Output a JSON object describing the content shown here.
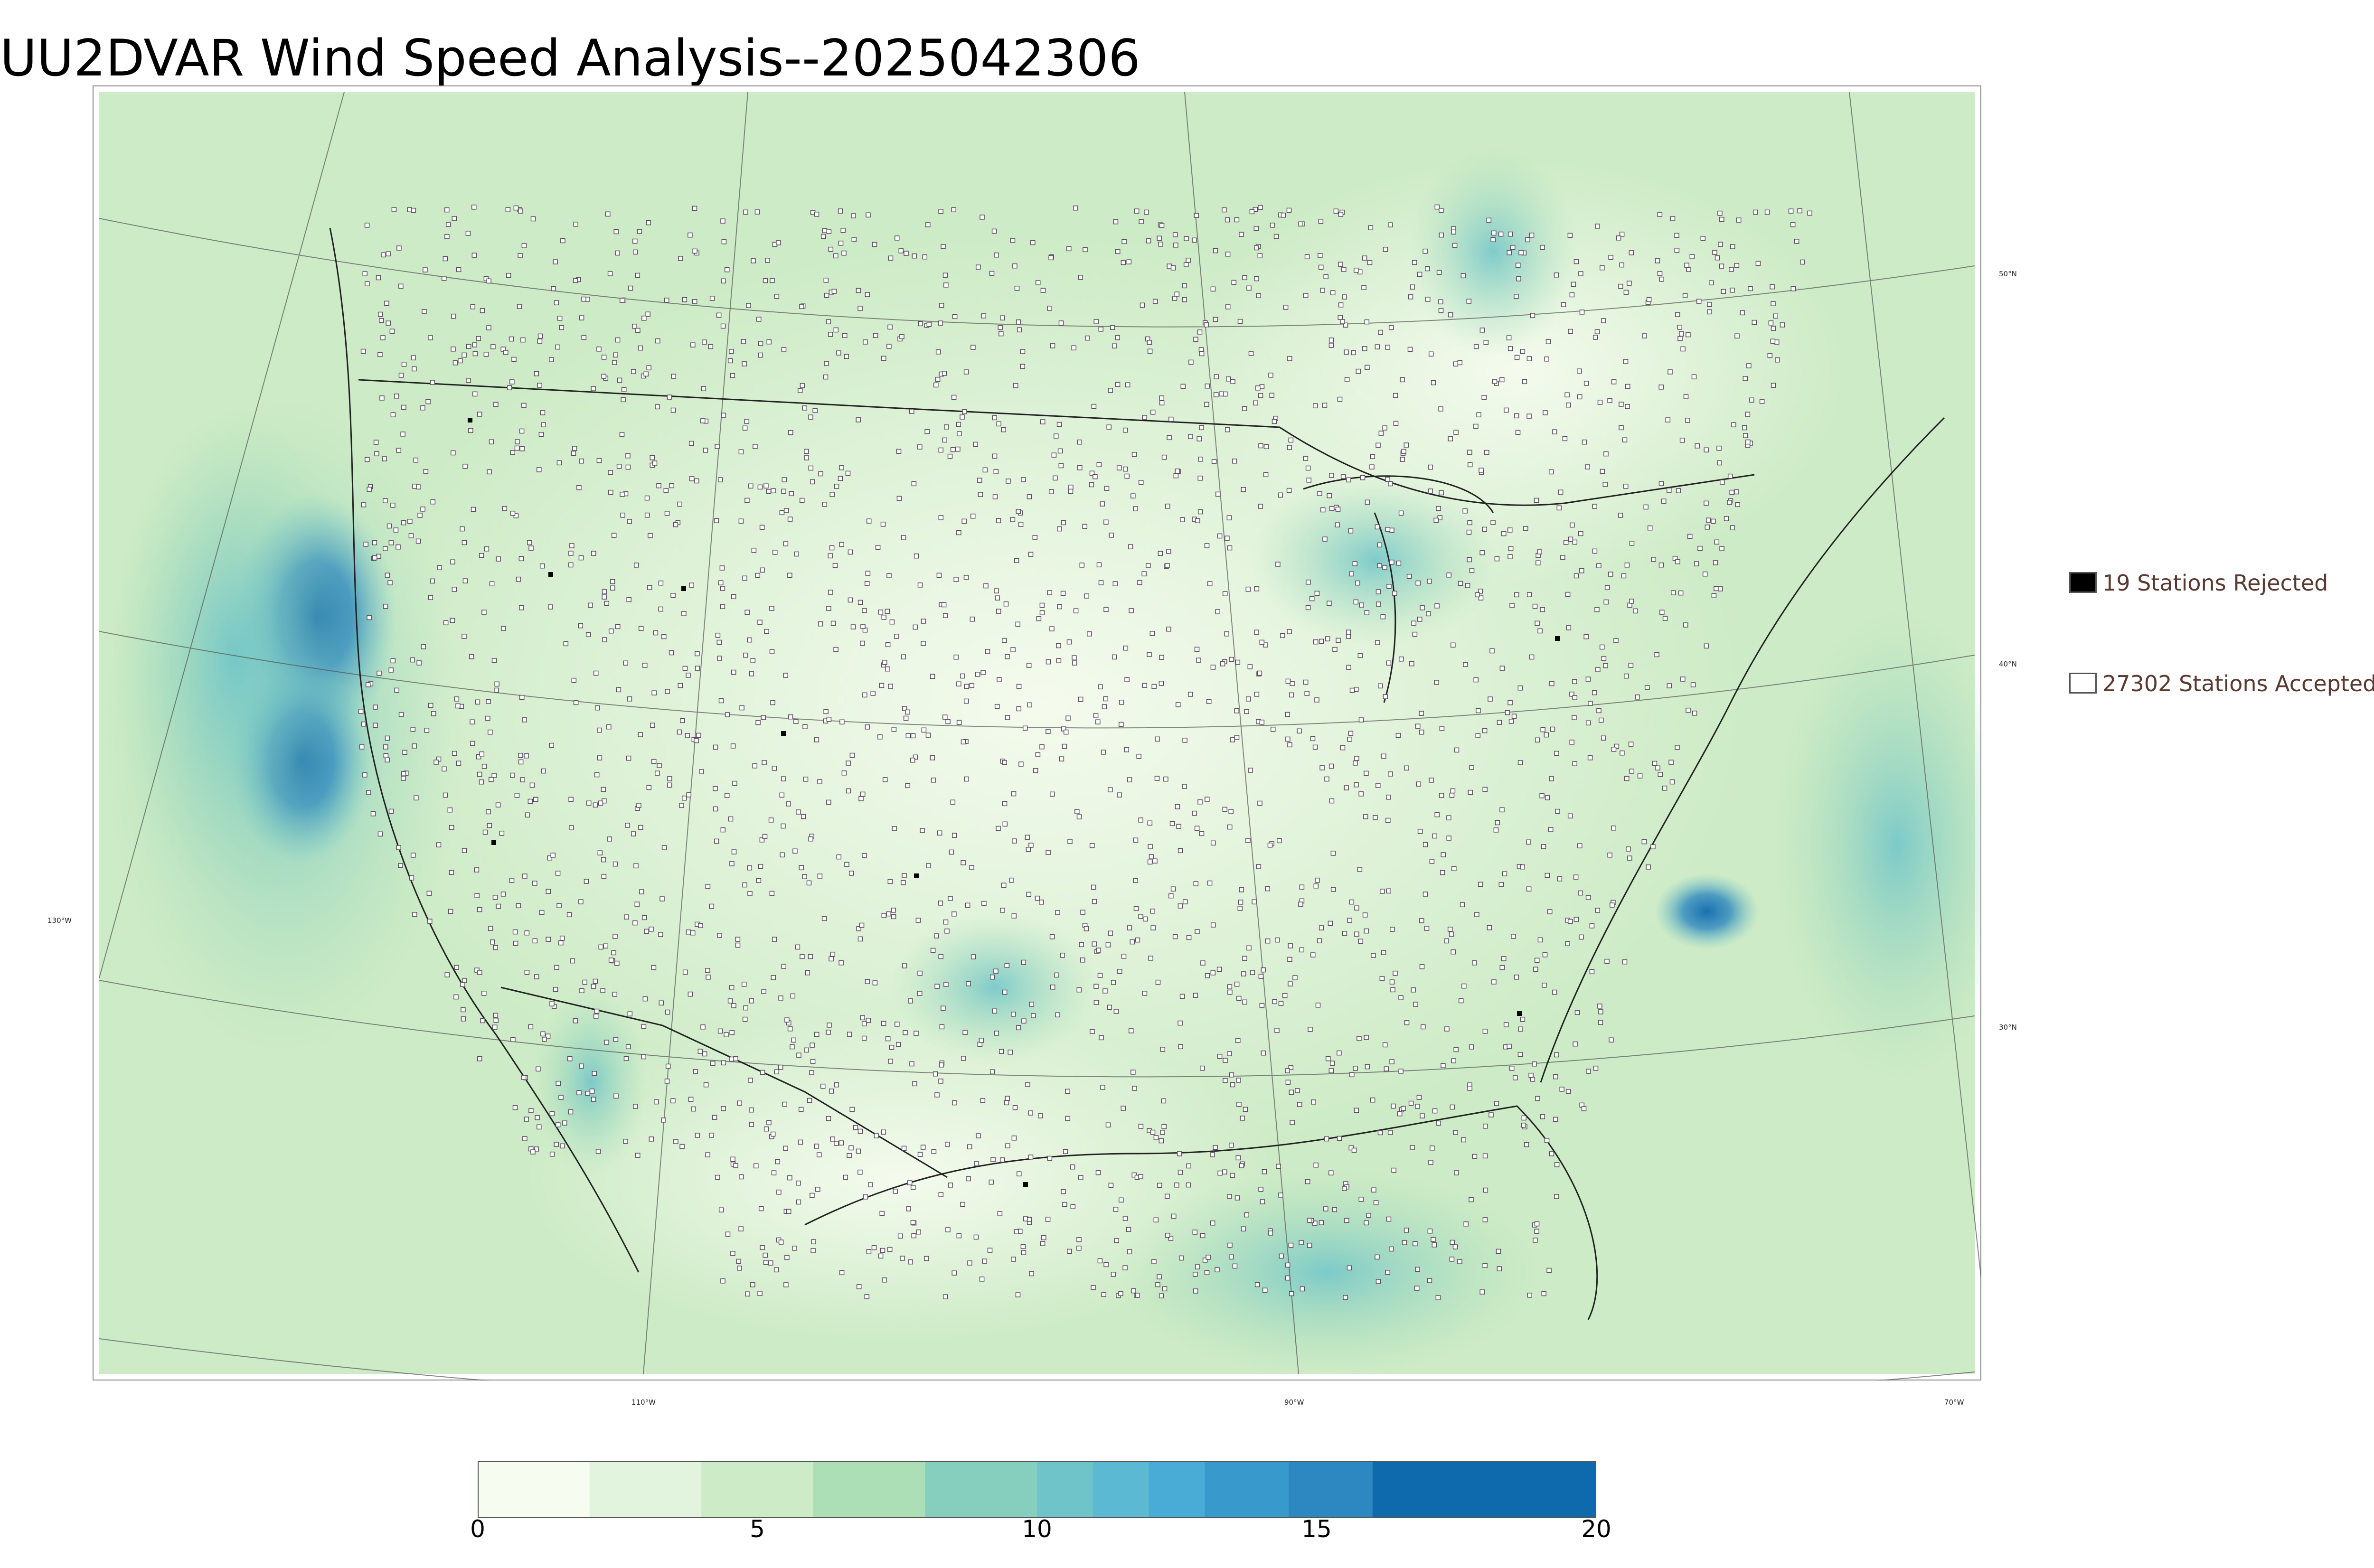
{
  "title": "UU2DVAR Wind Speed Analysis--2025042306",
  "map": {
    "type": "filled contour map with station observation markers",
    "region": "CONUS",
    "lat_labels": [
      "50°N",
      "40°N",
      "30°N"
    ],
    "lon_labels": [
      "130°W",
      "110°W",
      "90°W",
      "70°W"
    ],
    "color_scale": [
      "#f7fcf0",
      "#e0f3db",
      "#ccebc5",
      "#a8ddb5",
      "#7bccc4",
      "#4eb3d3",
      "#2b8cbe",
      "#0868ac"
    ]
  },
  "legend": {
    "rejected": {
      "label": "19 Stations Rejected",
      "marker_color": "#000000"
    },
    "accepted": {
      "label": "27302 Stations Accepted",
      "marker_color": "#ffffff"
    }
  },
  "colorbar": {
    "min": 0,
    "max": 20,
    "ticks": [
      "0",
      "5",
      "10",
      "15",
      "20"
    ],
    "tick_values": [
      0,
      5,
      10,
      15,
      20
    ],
    "bins": [
      {
        "from": 0,
        "to": 2,
        "color": "#f7fcf0"
      },
      {
        "from": 2,
        "to": 4,
        "color": "#e3f4de"
      },
      {
        "from": 4,
        "to": 6,
        "color": "#cdebc6"
      },
      {
        "from": 6,
        "to": 8,
        "color": "#acdfb6"
      },
      {
        "from": 8,
        "to": 10,
        "color": "#86cfbe"
      },
      {
        "from": 10,
        "to": 11,
        "color": "#6ec4c9"
      },
      {
        "from": 11,
        "to": 12,
        "color": "#5cb9d4"
      },
      {
        "from": 12,
        "to": 13,
        "color": "#48acd6"
      },
      {
        "from": 13,
        "to": 14.5,
        "color": "#3799cc"
      },
      {
        "from": 14.5,
        "to": 16,
        "color": "#2d87c0"
      },
      {
        "from": 16,
        "to": 20,
        "color": "#0f6aad"
      }
    ]
  }
}
